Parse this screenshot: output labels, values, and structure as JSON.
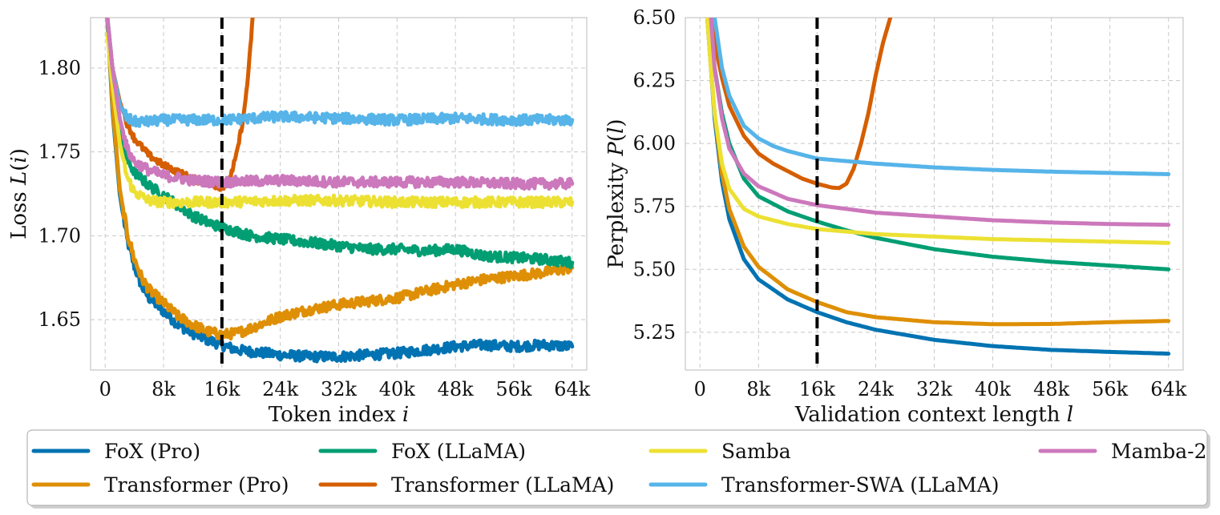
{
  "chart_data": [
    {
      "type": "line",
      "xlabel": "Token index i",
      "ylabel": "Loss L(i)",
      "xlim": [
        -2000,
        66000
      ],
      "ylim": [
        1.62,
        1.83
      ],
      "xticks": [
        0,
        8000,
        16000,
        24000,
        32000,
        40000,
        48000,
        56000,
        64000
      ],
      "xtick_labels": [
        "0",
        "8k",
        "16k",
        "24k",
        "32k",
        "40k",
        "48k",
        "56k",
        "64k"
      ],
      "yticks": [
        1.65,
        1.7,
        1.75,
        1.8
      ],
      "ytick_labels": [
        "1.65",
        "1.70",
        "1.75",
        "1.80"
      ],
      "vline_x": 16000,
      "grid": true,
      "series": [
        {
          "name": "FoX (Pro)",
          "color": "#0173b2",
          "noise": 0.003,
          "x": [
            300,
            1000,
            2000,
            3000,
            4000,
            5000,
            6000,
            8000,
            10000,
            12000,
            14000,
            16000,
            18000,
            20000,
            24000,
            28000,
            32000,
            36000,
            40000,
            44000,
            48000,
            52000,
            56000,
            60000,
            64000
          ],
          "y": [
            1.83,
            1.775,
            1.725,
            1.698,
            1.682,
            1.67,
            1.663,
            1.655,
            1.647,
            1.642,
            1.638,
            1.635,
            1.632,
            1.631,
            1.629,
            1.628,
            1.628,
            1.629,
            1.63,
            1.632,
            1.634,
            1.635,
            1.634,
            1.635,
            1.634
          ]
        },
        {
          "name": "Transformer (Pro)",
          "color": "#de8f05",
          "noise": 0.003,
          "x": [
            300,
            1000,
            2000,
            3000,
            4000,
            5000,
            6000,
            8000,
            10000,
            12000,
            14000,
            16000,
            18000,
            20000,
            24000,
            28000,
            32000,
            36000,
            40000,
            44000,
            48000,
            52000,
            56000,
            60000,
            64000
          ],
          "y": [
            1.83,
            1.778,
            1.728,
            1.702,
            1.686,
            1.675,
            1.668,
            1.66,
            1.652,
            1.647,
            1.643,
            1.641,
            1.642,
            1.645,
            1.652,
            1.656,
            1.659,
            1.661,
            1.663,
            1.667,
            1.671,
            1.674,
            1.676,
            1.678,
            1.681
          ]
        },
        {
          "name": "FoX (LLaMA)",
          "color": "#029e73",
          "noise": 0.003,
          "x": [
            300,
            1000,
            2000,
            3000,
            4000,
            6000,
            8000,
            10000,
            12000,
            14000,
            16000,
            20000,
            24000,
            28000,
            32000,
            36000,
            40000,
            44000,
            48000,
            52000,
            56000,
            60000,
            64000
          ],
          "y": [
            1.83,
            1.79,
            1.76,
            1.745,
            1.738,
            1.73,
            1.724,
            1.718,
            1.712,
            1.708,
            1.705,
            1.7,
            1.698,
            1.696,
            1.694,
            1.692,
            1.692,
            1.691,
            1.692,
            1.688,
            1.687,
            1.686,
            1.684
          ]
        },
        {
          "name": "Transformer (LLaMA)",
          "color": "#d55e00",
          "noise": 0.002,
          "x": [
            300,
            1000,
            2000,
            3000,
            4000,
            6000,
            8000,
            10000,
            12000,
            14000,
            16000,
            17000,
            18000,
            19000,
            19700,
            20200
          ],
          "y": [
            1.83,
            1.8,
            1.78,
            1.767,
            1.758,
            1.748,
            1.742,
            1.738,
            1.734,
            1.731,
            1.729,
            1.733,
            1.748,
            1.772,
            1.8,
            1.83
          ]
        },
        {
          "name": "Samba",
          "color": "#ece133",
          "noise": 0.003,
          "x": [
            300,
            1000,
            2000,
            3000,
            4000,
            6000,
            8000,
            12000,
            16000,
            24000,
            32000,
            40000,
            48000,
            56000,
            64000
          ],
          "y": [
            1.82,
            1.79,
            1.755,
            1.735,
            1.726,
            1.721,
            1.72,
            1.72,
            1.72,
            1.721,
            1.721,
            1.72,
            1.72,
            1.72,
            1.72
          ]
        },
        {
          "name": "Transformer-SWA (LLaMA)",
          "color": "#56b4e9",
          "noise": 0.003,
          "x": [
            300,
            1000,
            2000,
            3000,
            4000,
            6000,
            8000,
            16000,
            24000,
            32000,
            40000,
            48000,
            56000,
            64000
          ],
          "y": [
            1.83,
            1.8,
            1.778,
            1.77,
            1.768,
            1.768,
            1.769,
            1.769,
            1.771,
            1.77,
            1.769,
            1.77,
            1.769,
            1.769
          ]
        },
        {
          "name": "Mamba-2",
          "color": "#cc78bc",
          "noise": 0.003,
          "x": [
            300,
            1000,
            2000,
            3000,
            4000,
            6000,
            8000,
            12000,
            16000,
            24000,
            32000,
            40000,
            48000,
            56000,
            64000
          ],
          "y": [
            1.83,
            1.8,
            1.77,
            1.752,
            1.744,
            1.739,
            1.736,
            1.733,
            1.732,
            1.733,
            1.732,
            1.732,
            1.732,
            1.731,
            1.731
          ]
        }
      ]
    },
    {
      "type": "line",
      "xlabel": "Validation context length l",
      "ylabel": "Perplexity P(l)",
      "xlim": [
        -2000,
        66000
      ],
      "ylim": [
        5.1,
        6.5
      ],
      "xticks": [
        0,
        8000,
        16000,
        24000,
        32000,
        40000,
        48000,
        56000,
        64000
      ],
      "xtick_labels": [
        "0",
        "8k",
        "16k",
        "24k",
        "32k",
        "40k",
        "48k",
        "56k",
        "64k"
      ],
      "yticks": [
        5.25,
        5.5,
        5.75,
        6.0,
        6.25,
        6.5
      ],
      "ytick_labels": [
        "5.25",
        "5.50",
        "5.75",
        "6.00",
        "6.25",
        "6.50"
      ],
      "vline_x": 16000,
      "grid": true,
      "series": [
        {
          "name": "FoX (Pro)",
          "color": "#0173b2",
          "noise": 0,
          "x": [
            1000,
            1500,
            2000,
            3000,
            4000,
            6000,
            8000,
            12000,
            16000,
            20000,
            24000,
            32000,
            40000,
            48000,
            56000,
            64000
          ],
          "y": [
            6.5,
            6.3,
            6.1,
            5.85,
            5.7,
            5.54,
            5.46,
            5.38,
            5.33,
            5.29,
            5.26,
            5.22,
            5.195,
            5.18,
            5.172,
            5.165
          ]
        },
        {
          "name": "Transformer (Pro)",
          "color": "#de8f05",
          "noise": 0,
          "x": [
            1000,
            1500,
            2000,
            3000,
            4000,
            6000,
            8000,
            12000,
            16000,
            20000,
            24000,
            32000,
            40000,
            48000,
            56000,
            64000
          ],
          "y": [
            6.5,
            6.3,
            6.12,
            5.88,
            5.74,
            5.59,
            5.51,
            5.42,
            5.37,
            5.33,
            5.31,
            5.29,
            5.282,
            5.283,
            5.29,
            5.295
          ]
        },
        {
          "name": "FoX (LLaMA)",
          "color": "#029e73",
          "noise": 0,
          "x": [
            1200,
            2000,
            3000,
            4000,
            6000,
            8000,
            12000,
            16000,
            20000,
            24000,
            32000,
            40000,
            48000,
            56000,
            64000
          ],
          "y": [
            6.5,
            6.3,
            6.12,
            6.0,
            5.86,
            5.79,
            5.73,
            5.69,
            5.655,
            5.625,
            5.58,
            5.55,
            5.53,
            5.515,
            5.5
          ]
        },
        {
          "name": "Transformer (LLaMA)",
          "color": "#d55e00",
          "noise": 0,
          "x": [
            1500,
            2000,
            3000,
            4000,
            6000,
            8000,
            10000,
            12000,
            14000,
            16000,
            18000,
            19000,
            20000,
            21000,
            22000,
            23000,
            24000,
            25000,
            26000
          ],
          "y": [
            6.5,
            6.4,
            6.26,
            6.15,
            6.03,
            5.96,
            5.92,
            5.89,
            5.86,
            5.84,
            5.825,
            5.823,
            5.84,
            5.9,
            6.0,
            6.12,
            6.27,
            6.4,
            6.5
          ]
        },
        {
          "name": "Samba",
          "color": "#ece133",
          "noise": 0,
          "x": [
            1000,
            1500,
            2000,
            3000,
            4000,
            6000,
            8000,
            12000,
            16000,
            24000,
            32000,
            40000,
            48000,
            56000,
            64000
          ],
          "y": [
            6.5,
            6.3,
            6.12,
            5.92,
            5.82,
            5.74,
            5.71,
            5.68,
            5.66,
            5.64,
            5.63,
            5.62,
            5.615,
            5.61,
            5.605
          ]
        },
        {
          "name": "Transformer-SWA (LLaMA)",
          "color": "#56b4e9",
          "noise": 0,
          "x": [
            2000,
            3000,
            4000,
            6000,
            8000,
            10000,
            12000,
            16000,
            24000,
            32000,
            40000,
            48000,
            56000,
            64000
          ],
          "y": [
            6.5,
            6.3,
            6.19,
            6.07,
            6.02,
            5.99,
            5.97,
            5.94,
            5.92,
            5.905,
            5.895,
            5.888,
            5.883,
            5.878
          ]
        },
        {
          "name": "Mamba-2",
          "color": "#cc78bc",
          "noise": 0,
          "x": [
            1500,
            2000,
            3000,
            4000,
            6000,
            8000,
            12000,
            16000,
            24000,
            32000,
            40000,
            48000,
            56000,
            64000
          ],
          "y": [
            6.5,
            6.3,
            6.1,
            5.98,
            5.88,
            5.83,
            5.78,
            5.755,
            5.725,
            5.71,
            5.695,
            5.686,
            5.68,
            5.677
          ]
        }
      ]
    }
  ],
  "legend": {
    "placement": "bottom",
    "entries": [
      {
        "label": "FoX (Pro)",
        "color": "#0173b2"
      },
      {
        "label": "Transformer (Pro)",
        "color": "#de8f05"
      },
      {
        "label": "FoX (LLaMA)",
        "color": "#029e73"
      },
      {
        "label": "Transformer (LLaMA)",
        "color": "#d55e00"
      },
      {
        "label": "Samba",
        "color": "#ece133"
      },
      {
        "label": "Transformer-SWA (LLaMA)",
        "color": "#56b4e9"
      },
      {
        "label": "Mamba-2",
        "color": "#cc78bc"
      }
    ]
  }
}
